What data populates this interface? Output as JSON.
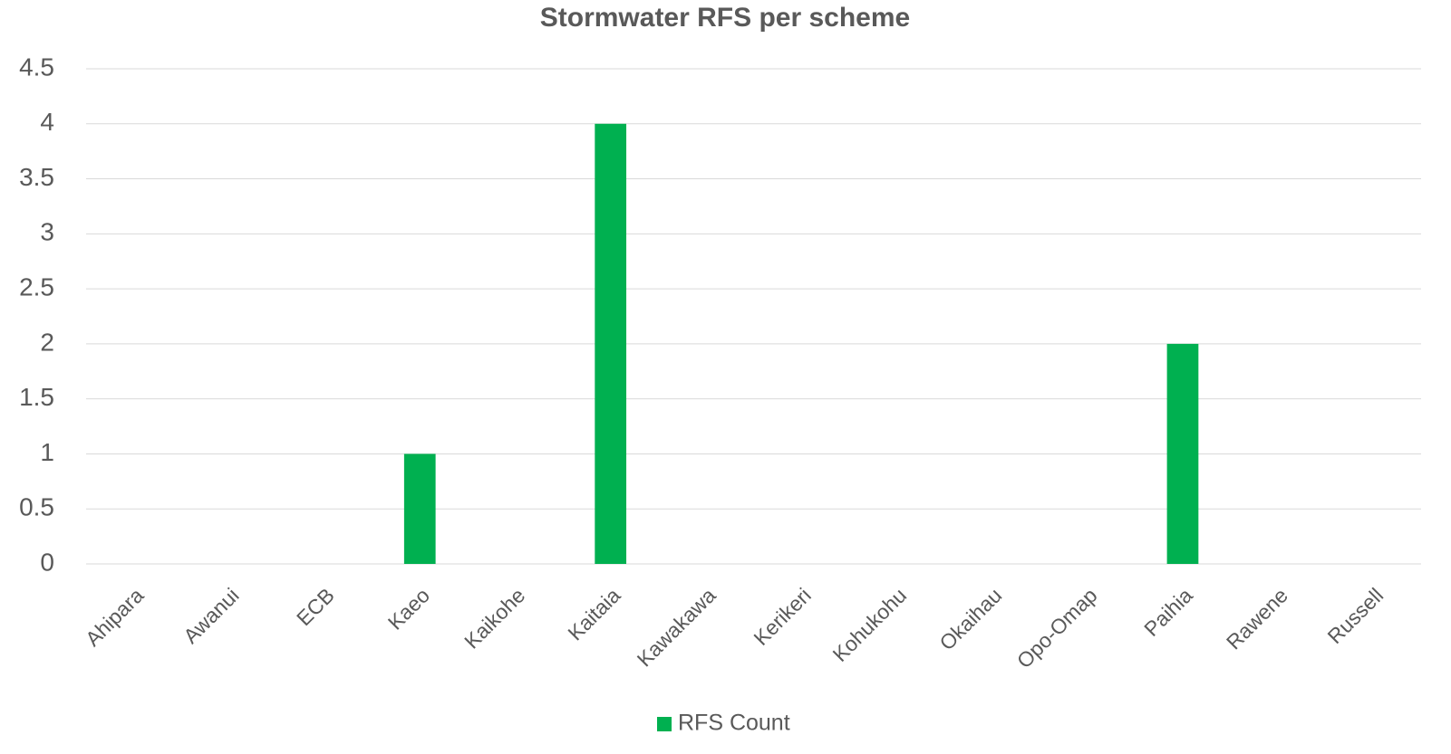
{
  "chart_data": {
    "type": "bar",
    "title": "Stormwater RFS per scheme",
    "categories": [
      "Ahipara",
      "Awanui",
      "ECB",
      "Kaeo",
      "Kaikohe",
      "Kaitaia",
      "Kawakawa",
      "Kerikeri",
      "Kohukohu",
      "Okaihau",
      "Opo-Omap",
      "Paihia",
      "Rawene",
      "Russell"
    ],
    "series": [
      {
        "name": "RFS Count",
        "color": "#00b050",
        "values": [
          0,
          0,
          0,
          1,
          0,
          4,
          0,
          0,
          0,
          0,
          0,
          2,
          0,
          0
        ]
      }
    ],
    "ylim": [
      0,
      4.5
    ],
    "yticks": [
      0,
      0.5,
      1,
      1.5,
      2,
      2.5,
      3,
      3.5,
      4,
      4.5
    ],
    "grid": true,
    "legend": "bottom"
  }
}
